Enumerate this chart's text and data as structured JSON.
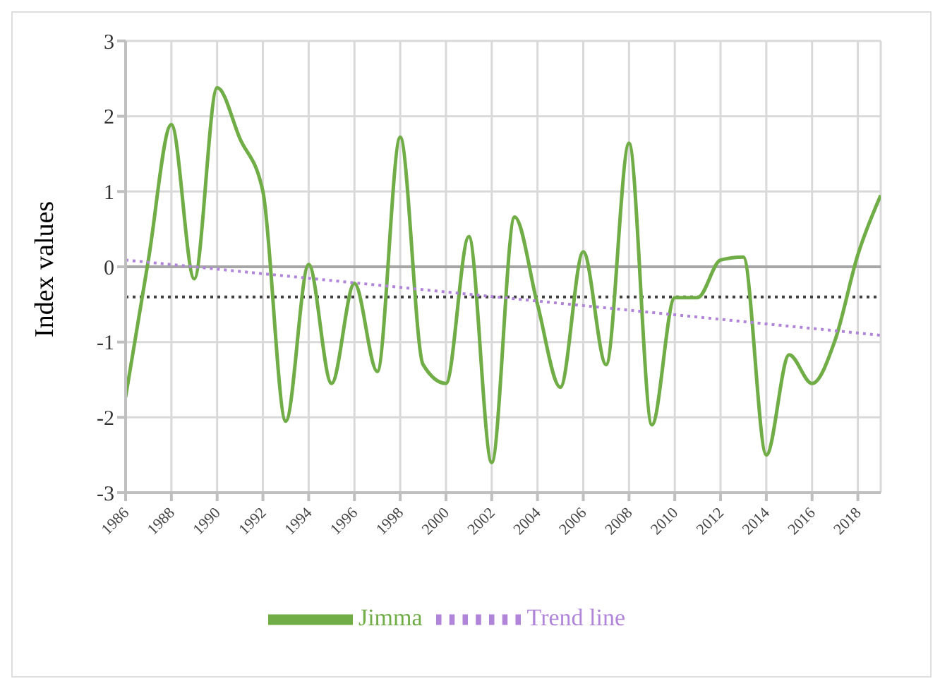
{
  "chart_data": {
    "type": "line",
    "ylabel": "Index values",
    "x": [
      1986,
      1987,
      1988,
      1989,
      1990,
      1991,
      1992,
      1993,
      1994,
      1995,
      1996,
      1997,
      1998,
      1999,
      2000,
      2001,
      2002,
      2003,
      2004,
      2005,
      2006,
      2007,
      2008,
      2009,
      2010,
      2011,
      2012,
      2013,
      2014,
      2015,
      2016,
      2017,
      2018,
      2019
    ],
    "series": [
      {
        "name": "Jimma",
        "color": "#70ad47",
        "line_style": "solid",
        "values": [
          -1.73,
          0.1,
          1.89,
          -0.16,
          2.38,
          1.7,
          1.0,
          -2.05,
          0.03,
          -1.55,
          -0.22,
          -1.39,
          1.72,
          -1.3,
          -1.55,
          0.4,
          -2.6,
          0.66,
          -0.5,
          -1.6,
          0.2,
          -1.3,
          1.64,
          -2.1,
          -0.41,
          -0.41,
          0.09,
          0.13,
          -2.5,
          -1.17,
          -1.55,
          -0.98,
          0.16,
          0.95
        ]
      },
      {
        "name": "Trend line",
        "color": "#b084d8",
        "line_style": "dotted",
        "x": [
          1986,
          2019
        ],
        "values": [
          0.09,
          -0.91
        ]
      }
    ],
    "ref_lines": [
      {
        "axis": "y",
        "value": -0.4,
        "color": "#404040",
        "line_style": "dotted"
      }
    ],
    "xlim": [
      1986,
      2019
    ],
    "xticks": [
      1986,
      1988,
      1990,
      1992,
      1994,
      1996,
      1998,
      2000,
      2002,
      2004,
      2006,
      2008,
      2010,
      2012,
      2014,
      2016,
      2018
    ],
    "ylim": [
      -3,
      3
    ],
    "yticks": [
      -3,
      -2,
      -1,
      0,
      1,
      2,
      3
    ],
    "grid": true,
    "legend": "bottom",
    "marker": "none"
  }
}
